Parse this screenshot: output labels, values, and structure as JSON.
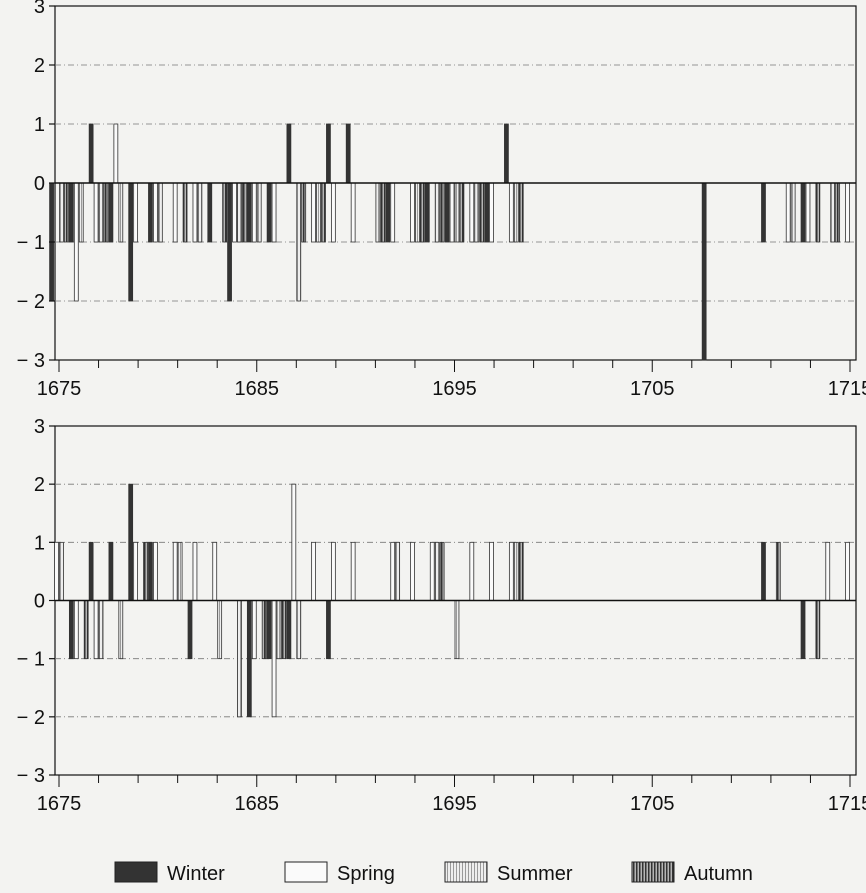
{
  "colors": {
    "winter": "#333333",
    "spring": "#fafafa",
    "summer": "#e4e4e4",
    "autumn": "#8a8a8a",
    "axis": "#111111",
    "grid": "#777777"
  },
  "legend": [
    {
      "key": "winter",
      "label": "Winter"
    },
    {
      "key": "spring",
      "label": "Spring"
    },
    {
      "key": "summer",
      "label": "Summer"
    },
    {
      "key": "autumn",
      "label": "Autumn"
    }
  ],
  "chart_data": [
    {
      "type": "bar",
      "xlabel": "",
      "ylabel": "",
      "xlim": [
        1675,
        1715
      ],
      "ylim": [
        -3,
        3
      ],
      "xticks": [
        1675,
        1685,
        1695,
        1705,
        1715
      ],
      "yticks": [
        3,
        2,
        1,
        0,
        -1,
        -2,
        -3
      ],
      "grid": true,
      "legend_position": "bottom",
      "series": [
        {
          "name": "Winter",
          "points": [
            [
              1675,
              -2
            ],
            [
              1676,
              -1
            ],
            [
              1677,
              1
            ],
            [
              1678,
              -1
            ],
            [
              1679,
              -2
            ],
            [
              1680,
              -1
            ],
            [
              1683,
              -1
            ],
            [
              1684,
              -2
            ],
            [
              1685,
              -1
            ],
            [
              1686,
              -1
            ],
            [
              1687,
              1
            ],
            [
              1689,
              1
            ],
            [
              1690,
              1
            ],
            [
              1692,
              -1
            ],
            [
              1694,
              -1
            ],
            [
              1695,
              -1
            ],
            [
              1697,
              -1
            ],
            [
              1698,
              1
            ],
            [
              1708,
              -3
            ],
            [
              1711,
              -1
            ],
            [
              1713,
              -1
            ]
          ]
        },
        {
          "name": "Spring",
          "points": [
            [
              1676,
              -2
            ],
            [
              1677,
              -1
            ],
            [
              1678,
              1
            ],
            [
              1679,
              -1
            ],
            [
              1680,
              -1
            ],
            [
              1681,
              -1
            ],
            [
              1682,
              -1
            ],
            [
              1684,
              -1
            ],
            [
              1685,
              -1
            ],
            [
              1686,
              -1
            ],
            [
              1688,
              -1
            ],
            [
              1689,
              -1
            ],
            [
              1690,
              -1
            ],
            [
              1692,
              -1
            ],
            [
              1693,
              -1
            ],
            [
              1695,
              -1
            ],
            [
              1696,
              -1
            ],
            [
              1697,
              -1
            ],
            [
              1698,
              -1
            ],
            [
              1712,
              -1
            ],
            [
              1713,
              -1
            ],
            [
              1715,
              -1
            ]
          ]
        },
        {
          "name": "Summer",
          "points": [
            [
              1675,
              -1
            ],
            [
              1676,
              -1
            ],
            [
              1677,
              -1
            ],
            [
              1678,
              -1
            ],
            [
              1680,
              -1
            ],
            [
              1682,
              -1
            ],
            [
              1684,
              -1
            ],
            [
              1685,
              -1
            ],
            [
              1687,
              -2
            ],
            [
              1688,
              -1
            ],
            [
              1691,
              -1
            ],
            [
              1693,
              -1
            ],
            [
              1694,
              -1
            ],
            [
              1695,
              -1
            ],
            [
              1696,
              -1
            ],
            [
              1698,
              -1
            ],
            [
              1712,
              -1
            ],
            [
              1714,
              -1
            ]
          ]
        },
        {
          "name": "Autumn",
          "points": [
            [
              1675,
              -1
            ],
            [
              1677,
              -1
            ],
            [
              1681,
              -1
            ],
            [
              1683,
              -1
            ],
            [
              1684,
              -1
            ],
            [
              1687,
              -1
            ],
            [
              1688,
              -1
            ],
            [
              1691,
              -1
            ],
            [
              1693,
              -1
            ],
            [
              1694,
              -1
            ],
            [
              1695,
              -1
            ],
            [
              1696,
              -1
            ],
            [
              1698,
              -1
            ],
            [
              1713,
              -1
            ],
            [
              1714,
              -1
            ]
          ]
        }
      ]
    },
    {
      "type": "bar",
      "xlabel": "",
      "ylabel": "",
      "xlim": [
        1675,
        1715
      ],
      "ylim": [
        -3,
        3
      ],
      "xticks": [
        1675,
        1685,
        1695,
        1705,
        1715
      ],
      "yticks": [
        3,
        2,
        1,
        0,
        -1,
        -2,
        -3
      ],
      "grid": true,
      "legend_position": "bottom",
      "series": [
        {
          "name": "Winter",
          "points": [
            [
              1676,
              -1
            ],
            [
              1677,
              1
            ],
            [
              1678,
              1
            ],
            [
              1679,
              2
            ],
            [
              1680,
              1
            ],
            [
              1682,
              -1
            ],
            [
              1685,
              -2
            ],
            [
              1686,
              -1
            ],
            [
              1687,
              -1
            ],
            [
              1689,
              -1
            ],
            [
              1711,
              1
            ],
            [
              1713,
              -1
            ]
          ]
        },
        {
          "name": "Spring",
          "points": [
            [
              1675,
              1
            ],
            [
              1676,
              -1
            ],
            [
              1677,
              -1
            ],
            [
              1679,
              1
            ],
            [
              1680,
              1
            ],
            [
              1681,
              1
            ],
            [
              1682,
              1
            ],
            [
              1683,
              1
            ],
            [
              1685,
              -1
            ],
            [
              1686,
              -2
            ],
            [
              1687,
              2
            ],
            [
              1688,
              1
            ],
            [
              1689,
              1
            ],
            [
              1690,
              1
            ],
            [
              1692,
              1
            ],
            [
              1693,
              1
            ],
            [
              1694,
              1
            ],
            [
              1696,
              1
            ],
            [
              1697,
              1
            ],
            [
              1698,
              1
            ],
            [
              1714,
              1
            ],
            [
              1715,
              1
            ]
          ]
        },
        {
          "name": "Summer",
          "points": [
            [
              1675,
              1
            ],
            [
              1677,
              -1
            ],
            [
              1678,
              -1
            ],
            [
              1681,
              1
            ],
            [
              1683,
              -1
            ],
            [
              1684,
              -2
            ],
            [
              1686,
              -1
            ],
            [
              1687,
              -1
            ],
            [
              1692,
              1
            ],
            [
              1694,
              1
            ],
            [
              1695,
              -1
            ],
            [
              1698,
              1
            ]
          ]
        },
        {
          "name": "Autumn",
          "points": [
            [
              1676,
              -1
            ],
            [
              1679,
              1
            ],
            [
              1685,
              -1
            ],
            [
              1686,
              -1
            ],
            [
              1694,
              1
            ],
            [
              1698,
              1
            ],
            [
              1711,
              1
            ],
            [
              1713,
              -1
            ]
          ]
        }
      ]
    }
  ]
}
